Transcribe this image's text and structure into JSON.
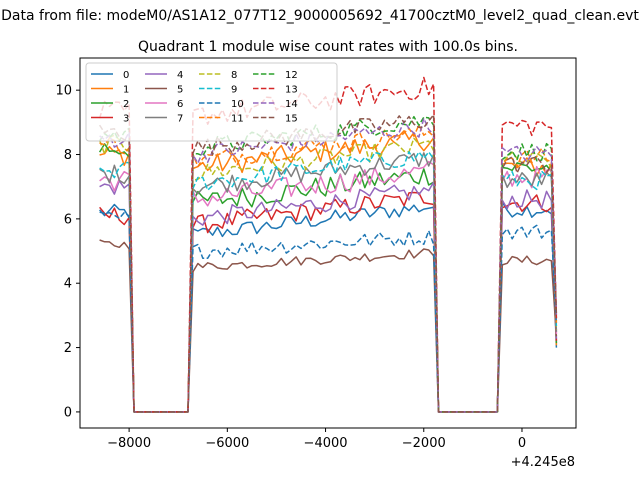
{
  "chart_data": {
    "type": "line",
    "suptitle": "Data from file: modeM0/AS1A12_077T12_9000005692_41700cztM0_level2_quad_clean.evt",
    "title": "Quadrant 1 module wise count rates with 100.0s bins.",
    "xlabel": "",
    "ylabel": "",
    "x_offset_label": "+4.245e8",
    "xlim": [
      -9000,
      1100
    ],
    "ylim": [
      -0.5,
      11.0
    ],
    "xticks": [
      -8000,
      -6000,
      -4000,
      -2000,
      0
    ],
    "xtick_labels": [
      "−8000",
      "−6000",
      "−4000",
      "−2000",
      "0"
    ],
    "yticks": [
      0,
      2,
      4,
      6,
      8,
      10
    ],
    "ytick_labels": [
      "0",
      "2",
      "4",
      "6",
      "8",
      "10"
    ],
    "grid": false,
    "legend_position": "top-left",
    "legend_columns": 4,
    "segments": [
      {
        "start": -8600,
        "end": -8000
      },
      {
        "start": -6700,
        "end": -1800
      },
      {
        "start": -400,
        "end": 700
      }
    ],
    "series": [
      {
        "name": "0",
        "color": "#1f77b4",
        "dash": "solid",
        "base": 6.2,
        "base2": 5.5,
        "base3": 6.3,
        "amp": 0.25
      },
      {
        "name": "1",
        "color": "#ff7f0e",
        "dash": "solid",
        "base": 8.0,
        "base2": 7.6,
        "base3": 7.6,
        "amp": 0.35
      },
      {
        "name": "2",
        "color": "#2ca02c",
        "dash": "solid",
        "base": 8.2,
        "base2": 6.5,
        "base3": 7.6,
        "amp": 0.35
      },
      {
        "name": "3",
        "color": "#d62728",
        "dash": "solid",
        "base": 6.1,
        "base2": 5.8,
        "base3": 6.5,
        "amp": 0.3
      },
      {
        "name": "4",
        "color": "#9467bd",
        "dash": "solid",
        "base": 7.0,
        "base2": 6.0,
        "base3": 6.6,
        "amp": 0.3
      },
      {
        "name": "5",
        "color": "#8c564b",
        "dash": "solid",
        "base": 5.2,
        "base2": 4.5,
        "base3": 4.7,
        "amp": 0.15
      },
      {
        "name": "6",
        "color": "#e377c2",
        "dash": "solid",
        "base": 7.2,
        "base2": 6.6,
        "base3": 7.3,
        "amp": 0.35
      },
      {
        "name": "7",
        "color": "#7f7f7f",
        "dash": "solid",
        "base": 7.4,
        "base2": 7.0,
        "base3": 7.2,
        "amp": 0.3
      },
      {
        "name": "8",
        "color": "#bcbd22",
        "dash": "dashed",
        "base": 8.3,
        "base2": 7.4,
        "base3": 7.8,
        "amp": 0.3
      },
      {
        "name": "9",
        "color": "#17becf",
        "dash": "dashed",
        "base": 7.5,
        "base2": 7.1,
        "base3": 7.2,
        "amp": 0.3
      },
      {
        "name": "10",
        "color": "#1f77b4",
        "dash": "dashed",
        "base": 6.0,
        "base2": 5.0,
        "base3": 5.6,
        "amp": 0.25
      },
      {
        "name": "11",
        "color": "#ff7f0e",
        "dash": "dashed",
        "base": 8.3,
        "base2": 7.8,
        "base3": 7.9,
        "amp": 0.3
      },
      {
        "name": "12",
        "color": "#2ca02c",
        "dash": "dashed",
        "base": 8.6,
        "base2": 8.2,
        "base3": 8.1,
        "amp": 0.3
      },
      {
        "name": "13",
        "color": "#d62728",
        "dash": "dashed",
        "base": 9.3,
        "base2": 9.2,
        "base3": 8.9,
        "amp": 0.35
      },
      {
        "name": "14",
        "color": "#9467bd",
        "dash": "dashed",
        "base": 8.5,
        "base2": 8.0,
        "base3": 8.0,
        "amp": 0.3
      },
      {
        "name": "15",
        "color": "#8c564b",
        "dash": "dashed",
        "base": 8.7,
        "base2": 8.2,
        "base3": 7.7,
        "amp": 0.3
      }
    ]
  }
}
